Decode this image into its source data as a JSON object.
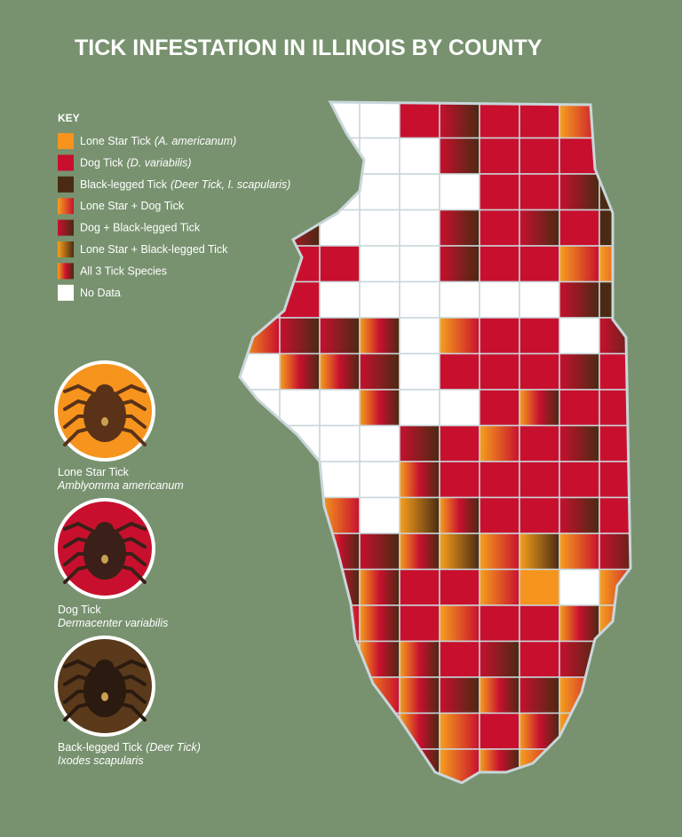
{
  "title": "TICK INFESTATION IN ILLINOIS BY COUNTY",
  "key": {
    "heading": "KEY",
    "items": [
      {
        "label": "Lone Star Tick",
        "note": "(A. americanum)",
        "colors": [
          "#f7941d",
          "#f7941d"
        ]
      },
      {
        "label": "Dog Tick",
        "note": "(D. variabilis)",
        "colors": [
          "#c8102e",
          "#c8102e"
        ]
      },
      {
        "label": "Black-legged Tick",
        "note": "(Deer Tick, I. scapularis)",
        "colors": [
          "#4a2a12",
          "#4a2a12"
        ]
      },
      {
        "label": "Lone Star + Dog Tick",
        "colors": [
          "#f7a01d",
          "#c8102e"
        ]
      },
      {
        "label": "Dog + Black-legged Tick",
        "colors": [
          "#c8102e",
          "#4a2a12"
        ]
      },
      {
        "label": "Lone Star + Black-legged Tick",
        "colors": [
          "#f7a01d",
          "#4a2a12"
        ]
      },
      {
        "label": "All 3 Tick Species",
        "colors": [
          "#f7a01d",
          "#c8102e",
          "#4a2a12"
        ]
      },
      {
        "label": "No Data",
        "colors": [
          "#ffffff",
          "#ffffff"
        ]
      }
    ]
  },
  "ticks": [
    {
      "name": "Lone Star Tick",
      "species": "Amblyomma americanum",
      "colors": [
        "#f7941d",
        "#5a3218"
      ]
    },
    {
      "name": "Dog Tick",
      "species": "Dermacenter variabilis",
      "colors": [
        "#c8102e",
        "#3a2018"
      ]
    },
    {
      "name": "Back-legged Tick",
      "note": "(Deer Tick)",
      "species": "Ixodes scapularis",
      "colors": [
        "#5a3a1a",
        "#2a1a10"
      ]
    }
  ]
}
